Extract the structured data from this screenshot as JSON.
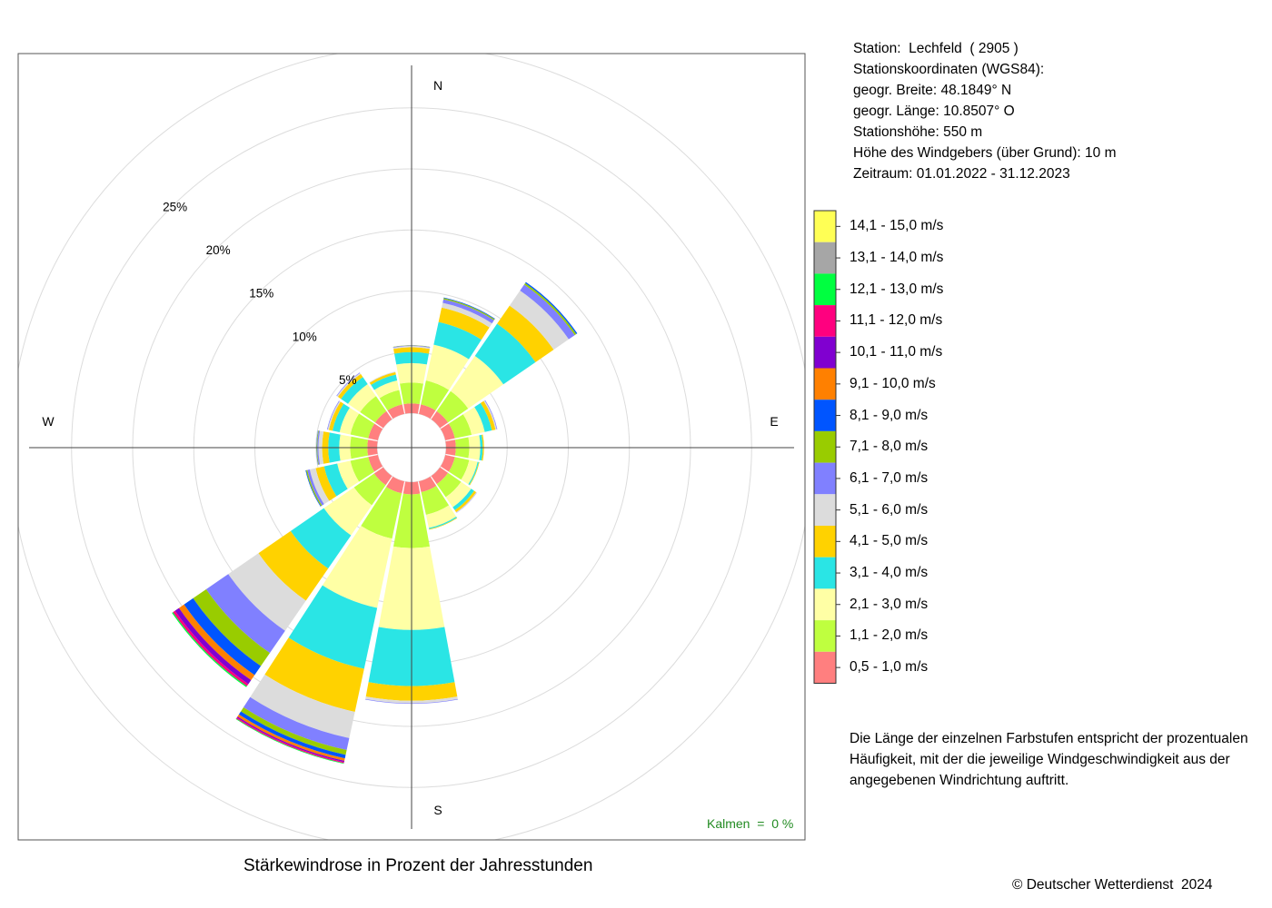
{
  "station_info": [
    "Station:  Lechfeld  ( 2905 )",
    "Stationskoordinaten (WGS84):",
    "geogr. Breite: 48.1849° N",
    "geogr. Länge: 10.8507° O",
    "Stationshöhe: 550 m",
    "Höhe des Windgebers (über Grund): 10 m",
    "Zeitraum: 01.01.2022 - 31.12.2023"
  ],
  "note": [
    "Die Länge der einzelnen Farbstufen entspricht der prozentualen",
    "Häufigkeit, mit der die jeweilige Windgeschwindigkeit aus der",
    "angegebenen Windrichtung auftritt."
  ],
  "title": "Stärkewindrose in Prozent der Jahresstunden",
  "copyright": "© Deutscher Wetterdienst  2024",
  "calm": "Kalmen  =  0 %",
  "chart_data": {
    "type": "wind-rose",
    "title": "Stärkewindrose in Prozent der Jahresstunden",
    "unit": "%",
    "directions": [
      "N",
      "NNE",
      "NE",
      "ENE",
      "E",
      "ESE",
      "SE",
      "SSE",
      "S",
      "SSW",
      "SW",
      "WSW",
      "W",
      "WNW",
      "NW",
      "NNW"
    ],
    "direction_labels": {
      "N": "N",
      "E": "E",
      "S": "S",
      "W": "W"
    },
    "radial_ticks": [
      5,
      10,
      15,
      20,
      25
    ],
    "radial_tick_labels": [
      "5%",
      "10%",
      "15%",
      "20%",
      "25%"
    ],
    "radial_max": 30,
    "grid": true,
    "legend_position": "right",
    "classes": [
      {
        "label": "0,5 - 1,0 m/s",
        "color": "#FF7F7F"
      },
      {
        "label": "1,1 - 2,0 m/s",
        "color": "#BFFF3F"
      },
      {
        "label": "2,1 - 3,0 m/s",
        "color": "#FFFFA5"
      },
      {
        "label": "3,1 - 4,0 m/s",
        "color": "#2AE5E5"
      },
      {
        "label": "4,1 - 5,0 m/s",
        "color": "#FFD200"
      },
      {
        "label": "5,1 - 6,0 m/s",
        "color": "#DCDCDC"
      },
      {
        "label": "6,1 - 7,0 m/s",
        "color": "#8080FF"
      },
      {
        "label": "7,1 - 8,0 m/s",
        "color": "#99CC00"
      },
      {
        "label": "8,1 - 9,0 m/s",
        "color": "#0055FF"
      },
      {
        "label": "9,1 - 10,0 m/s",
        "color": "#FF8000"
      },
      {
        "label": "10,1 - 11,0 m/s",
        "color": "#8000D0"
      },
      {
        "label": "11,1 - 12,0 m/s",
        "color": "#FF007F"
      },
      {
        "label": "12,1 - 13,0 m/s",
        "color": "#00FF40"
      },
      {
        "label": "13,1 - 14,0 m/s",
        "color": "#A6A6A6"
      },
      {
        "label": "14,1 - 15,0 m/s",
        "color": "#FFFF55"
      }
    ],
    "series": [
      {
        "direction": "N",
        "values": [
          0.8,
          1.7,
          1.6,
          0.9,
          0.4,
          0.1,
          0.05,
          0.02,
          0,
          0,
          0,
          0,
          0,
          0,
          0
        ]
      },
      {
        "direction": "NNE",
        "values": [
          0.8,
          2.0,
          3.0,
          1.9,
          1.2,
          0.4,
          0.3,
          0.1,
          0.05,
          0,
          0,
          0,
          0,
          0,
          0
        ]
      },
      {
        "direction": "NE",
        "values": [
          0.8,
          2.0,
          3.5,
          3.2,
          1.8,
          1.5,
          0.6,
          0.15,
          0.1,
          0,
          0,
          0,
          0,
          0,
          0
        ]
      },
      {
        "direction": "ENE",
        "values": [
          0.8,
          1.4,
          1.1,
          0.6,
          0.3,
          0.1,
          0.05,
          0,
          0,
          0,
          0,
          0,
          0,
          0,
          0
        ]
      },
      {
        "direction": "E",
        "values": [
          0.8,
          1.1,
          0.9,
          0.2,
          0.1,
          0,
          0,
          0,
          0,
          0,
          0,
          0,
          0,
          0,
          0
        ]
      },
      {
        "direction": "ESE",
        "values": [
          0.8,
          1.2,
          0.7,
          0.1,
          0.05,
          0,
          0,
          0,
          0,
          0,
          0,
          0,
          0,
          0,
          0
        ]
      },
      {
        "direction": "SE",
        "values": [
          0.8,
          1.3,
          1.0,
          0.3,
          0.2,
          0.05,
          0.02,
          0,
          0,
          0,
          0,
          0,
          0,
          0,
          0
        ]
      },
      {
        "direction": "SSE",
        "values": [
          0.9,
          1.9,
          1.1,
          0.1,
          0.05,
          0,
          0,
          0,
          0,
          0,
          0,
          0,
          0,
          0,
          0
        ]
      },
      {
        "direction": "S",
        "values": [
          1.0,
          4.4,
          6.7,
          4.6,
          1.2,
          0.2,
          0.05,
          0,
          0,
          0,
          0,
          0,
          0,
          0,
          0
        ]
      },
      {
        "direction": "SSW",
        "values": [
          1.0,
          3.8,
          5.8,
          5.1,
          3.6,
          2.2,
          1.0,
          0.4,
          0.3,
          0.2,
          0.1,
          0.1,
          0.05,
          0,
          0
        ]
      },
      {
        "direction": "SW",
        "values": [
          0.9,
          2.0,
          3.0,
          3.3,
          3.2,
          3.0,
          2.2,
          1.3,
          0.9,
          0.5,
          0.4,
          0.2,
          0.1,
          0,
          0
        ]
      },
      {
        "direction": "WSW",
        "values": [
          0.8,
          1.5,
          1.1,
          1.1,
          0.7,
          0.5,
          0.2,
          0.1,
          0.05,
          0,
          0,
          0,
          0,
          0,
          0
        ]
      },
      {
        "direction": "W",
        "values": [
          0.8,
          1.4,
          0.9,
          0.9,
          0.5,
          0.3,
          0.1,
          0.05,
          0.02,
          0,
          0,
          0,
          0,
          0,
          0
        ]
      },
      {
        "direction": "WNW",
        "values": [
          0.8,
          1.5,
          0.9,
          0.6,
          0.3,
          0.1,
          0.05,
          0,
          0,
          0,
          0,
          0,
          0,
          0,
          0
        ]
      },
      {
        "direction": "NW",
        "values": [
          0.8,
          1.5,
          1.2,
          0.7,
          0.3,
          0.1,
          0.05,
          0,
          0,
          0,
          0,
          0,
          0,
          0,
          0
        ]
      },
      {
        "direction": "NNW",
        "values": [
          0.8,
          1.2,
          0.8,
          0.5,
          0.2,
          0.05,
          0,
          0,
          0,
          0,
          0,
          0,
          0,
          0,
          0
        ]
      }
    ]
  }
}
